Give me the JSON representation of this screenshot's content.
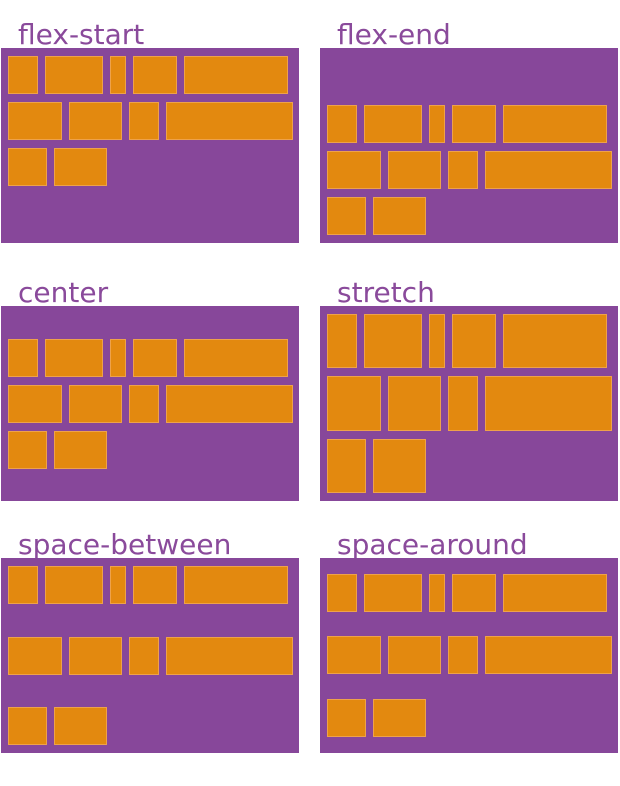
{
  "panels": [
    {
      "label": "flex-start",
      "align": "flex-start"
    },
    {
      "label": "flex-end",
      "align": "flex-end"
    },
    {
      "label": "center",
      "align": "center"
    },
    {
      "label": "stretch",
      "align": "stretch"
    },
    {
      "label": "space-between",
      "align": "space-between"
    },
    {
      "label": "space-around",
      "align": "space-around"
    }
  ]
}
